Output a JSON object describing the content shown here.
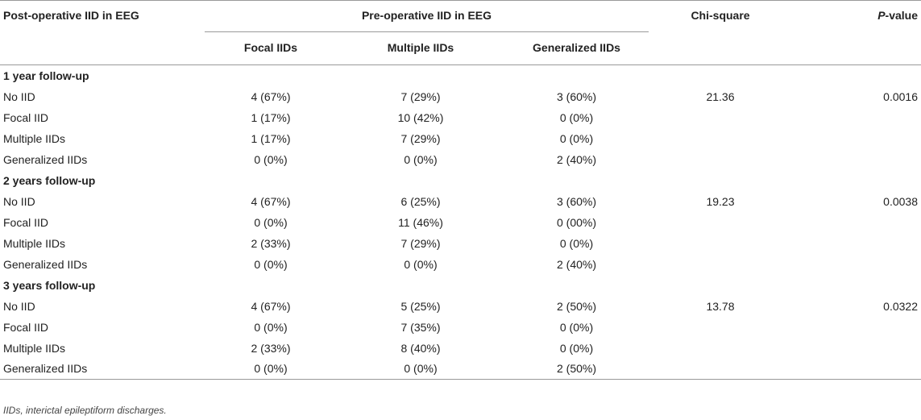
{
  "header": {
    "col0": "Post-operative IID in EEG",
    "group": "Pre-operative IID in EEG",
    "chi": "Chi-square",
    "p_italic": "P",
    "p_rest": "-value",
    "sub": [
      "Focal IIDs",
      "Multiple IIDs",
      "Generalized IIDs"
    ]
  },
  "sections": [
    {
      "title": "1 year follow-up",
      "rows": [
        {
          "label": "No IID",
          "focal": "4 (67%)",
          "multiple": "7 (29%)",
          "generalized": "3 (60%)",
          "chi": "21.36",
          "p": "0.0016"
        },
        {
          "label": "Focal IID",
          "focal": "1 (17%)",
          "multiple": "10 (42%)",
          "generalized": "0 (0%)",
          "chi": "",
          "p": ""
        },
        {
          "label": "Multiple IIDs",
          "focal": "1 (17%)",
          "multiple": "7 (29%)",
          "generalized": "0 (0%)",
          "chi": "",
          "p": ""
        },
        {
          "label": "Generalized IIDs",
          "focal": "0 (0%)",
          "multiple": "0 (0%)",
          "generalized": "2 (40%)",
          "chi": "",
          "p": ""
        }
      ]
    },
    {
      "title": "2 years follow-up",
      "rows": [
        {
          "label": "No IID",
          "focal": "4 (67%)",
          "multiple": "6 (25%)",
          "generalized": "3 (60%)",
          "chi": "19.23",
          "p": "0.0038"
        },
        {
          "label": "Focal IID",
          "focal": "0 (0%)",
          "multiple": "11 (46%)",
          "generalized": "0 (00%)",
          "chi": "",
          "p": ""
        },
        {
          "label": "Multiple IIDs",
          "focal": "2 (33%)",
          "multiple": "7 (29%)",
          "generalized": "0 (0%)",
          "chi": "",
          "p": ""
        },
        {
          "label": "Generalized IIDs",
          "focal": "0 (0%)",
          "multiple": "0 (0%)",
          "generalized": "2 (40%)",
          "chi": "",
          "p": ""
        }
      ]
    },
    {
      "title": "3 years follow-up",
      "rows": [
        {
          "label": "No IID",
          "focal": "4 (67%)",
          "multiple": "5 (25%)",
          "generalized": "2 (50%)",
          "chi": "13.78",
          "p": "0.0322"
        },
        {
          "label": "Focal IID",
          "focal": "0 (0%)",
          "multiple": "7 (35%)",
          "generalized": "0 (0%)",
          "chi": "",
          "p": ""
        },
        {
          "label": "Multiple IIDs",
          "focal": "2 (33%)",
          "multiple": "8 (40%)",
          "generalized": "0 (0%)",
          "chi": "",
          "p": ""
        },
        {
          "label": "Generalized IIDs",
          "focal": "0 (0%)",
          "multiple": "0 (0%)",
          "generalized": "2 (50%)",
          "chi": "",
          "p": ""
        }
      ]
    }
  ],
  "footnote": "IIDs, interictal epileptiform discharges."
}
